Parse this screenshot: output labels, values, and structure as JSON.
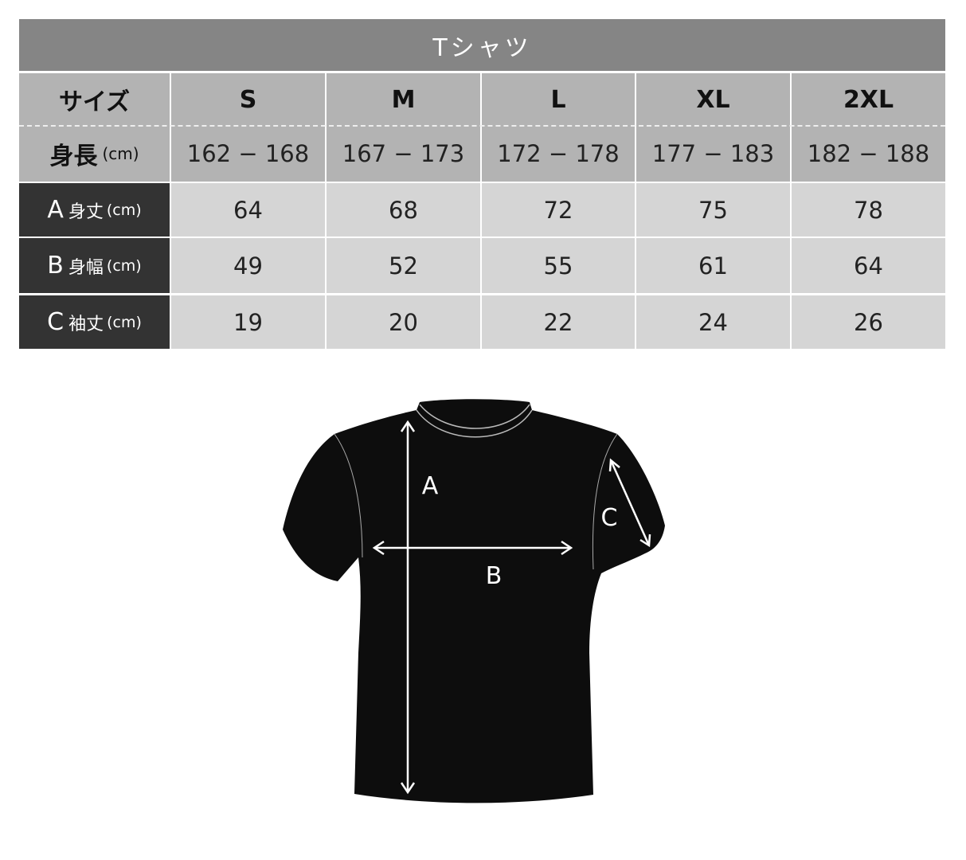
{
  "title": "Tシャツ",
  "header": {
    "size_label": "サイズ",
    "height_label": "身長",
    "unit": "(cm)"
  },
  "sizes": [
    "S",
    "M",
    "L",
    "XL",
    "2XL"
  ],
  "heights": [
    "162 − 168",
    "167 − 173",
    "172 − 178",
    "177 − 183",
    "182 − 188"
  ],
  "rows": [
    {
      "letter": "A",
      "name": "身丈",
      "unit": "(cm)",
      "values": [
        "64",
        "68",
        "72",
        "75",
        "78"
      ]
    },
    {
      "letter": "B",
      "name": "身幅",
      "unit": "(cm)",
      "values": [
        "49",
        "52",
        "55",
        "61",
        "64"
      ]
    },
    {
      "letter": "C",
      "name": "袖丈",
      "unit": "(cm)",
      "values": [
        "19",
        "20",
        "22",
        "24",
        "26"
      ]
    }
  ],
  "diagram": {
    "a": "A",
    "b": "B",
    "c": "C"
  },
  "colors": {
    "title_bg": "#858585",
    "header_bg": "#b3b3b3",
    "label_bg": "#333333",
    "data_bg": "#d5d5d5",
    "shirt": "#0d0d0d"
  }
}
